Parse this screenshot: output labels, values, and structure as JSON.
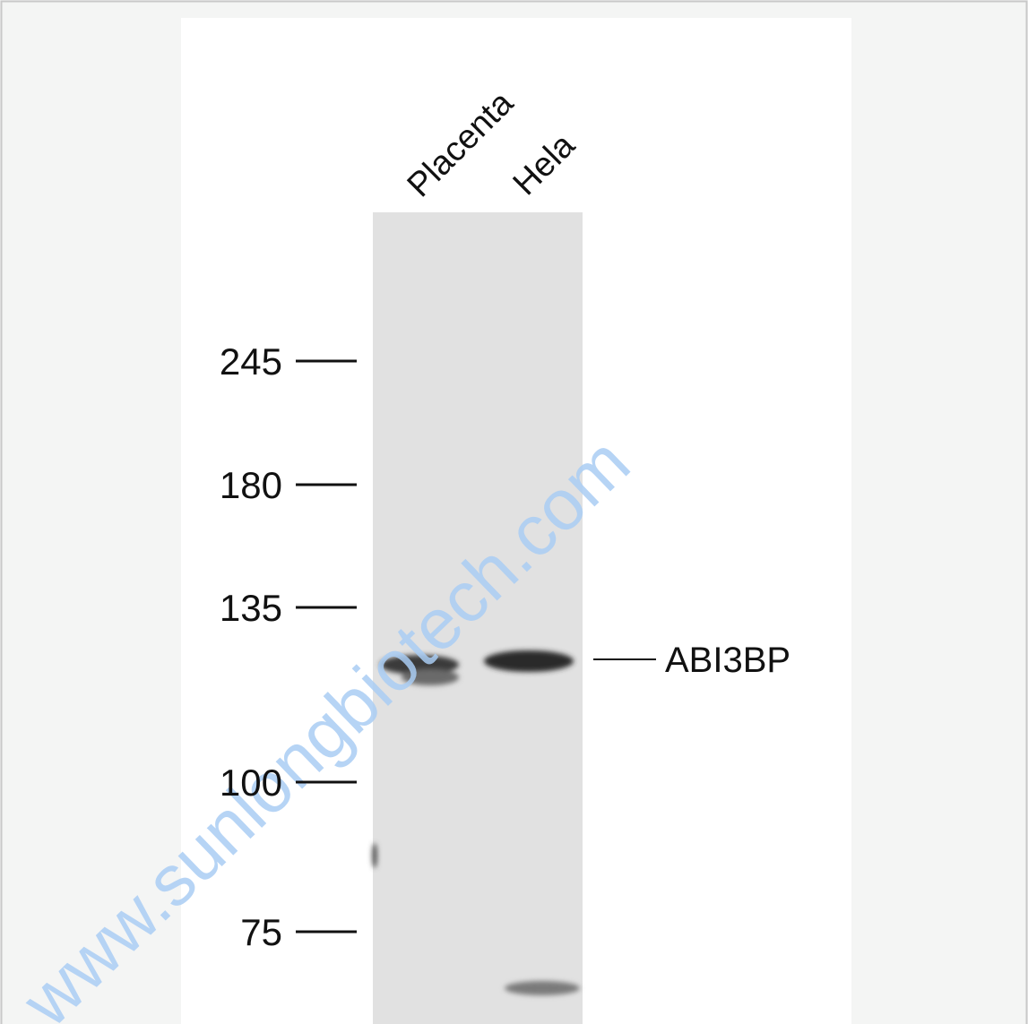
{
  "lanes": [
    "Placenta",
    "Hela"
  ],
  "markers": [
    245,
    180,
    135,
    100,
    75
  ],
  "band_label": "ABI3BP",
  "watermark": "www.sunlongbiotech.com"
}
